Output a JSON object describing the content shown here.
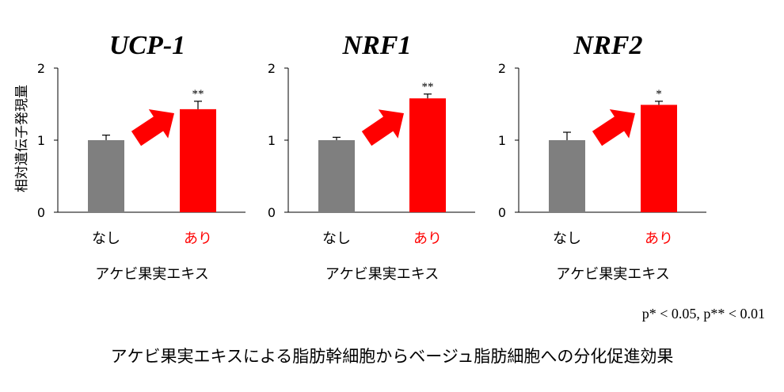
{
  "figure": {
    "ylabel": "相対遺伝子発現量",
    "pvalue_note": "p* < 0.05, p** < 0.01",
    "caption": "アケビ果実エキスによる脂肪幹細胞からベージュ脂肪細胞への分化促進効果"
  },
  "colors": {
    "control": "#7f7f7f",
    "treated": "#ff0000",
    "arrow": "#ff0000",
    "axis": "#000000"
  },
  "chart_data": [
    {
      "type": "bar",
      "title": "UCP-1",
      "xlabel": "アケビ果実エキス",
      "ylabel": "相対遺伝子発現量",
      "categories": [
        "なし",
        "あり"
      ],
      "values": [
        1.0,
        1.43
      ],
      "errors": [
        0.07,
        0.11
      ],
      "significance": [
        "",
        "**"
      ],
      "yticks": [
        0,
        1,
        2
      ],
      "ylim": [
        0,
        2
      ],
      "grid": false,
      "colors": [
        "#7f7f7f",
        "#ff0000"
      ]
    },
    {
      "type": "bar",
      "title": "NRF1",
      "xlabel": "アケビ果実エキス",
      "ylabel": "",
      "categories": [
        "なし",
        "あり"
      ],
      "values": [
        1.0,
        1.58
      ],
      "errors": [
        0.04,
        0.06
      ],
      "significance": [
        "",
        "**"
      ],
      "yticks": [
        0,
        1,
        2
      ],
      "ylim": [
        0,
        2
      ],
      "grid": false,
      "colors": [
        "#7f7f7f",
        "#ff0000"
      ]
    },
    {
      "type": "bar",
      "title": "NRF2",
      "xlabel": "アケビ果実エキス",
      "ylabel": "",
      "categories": [
        "なし",
        "あり"
      ],
      "values": [
        1.0,
        1.49
      ],
      "errors": [
        0.11,
        0.05
      ],
      "significance": [
        "",
        "*"
      ],
      "yticks": [
        0,
        1,
        2
      ],
      "ylim": [
        0,
        2
      ],
      "grid": false,
      "colors": [
        "#7f7f7f",
        "#ff0000"
      ]
    }
  ]
}
